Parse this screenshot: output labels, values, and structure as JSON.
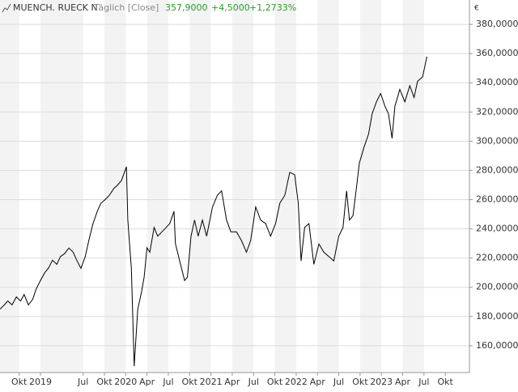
{
  "chart_data": {
    "type": "line",
    "title": "MUENCH. RUECK N",
    "subtitle": "Täglich [Close]",
    "last": "357,9000",
    "change": "+4,5000",
    "change_pct": "+1,2733%",
    "y_unit": "€",
    "color": "#000000",
    "grid": true,
    "x": [
      -5.7,
      -5.1,
      -4.6,
      -4.0,
      -3.4,
      -2.8,
      -2.3,
      -1.7,
      -1.1,
      -0.6,
      0,
      0.6,
      1.1,
      1.7,
      2.3,
      2.8,
      3.4,
      4.0,
      4.6,
      5.1,
      5.7,
      6.3,
      6.8,
      7.4,
      8.0,
      8.5,
      9.1,
      9.7,
      10.3,
      10.8,
      11.4,
      12.1,
      12.3,
      12.8,
      13.2,
      13.7,
      14.2,
      14.6,
      15.0,
      15.4,
      16.0,
      16.5,
      17.1,
      17.7,
      18.2,
      18.8,
      19.0,
      19.6,
      20.3,
      20.7,
      21.2,
      21.7,
      22.2,
      22.8,
      23.4,
      24.2,
      24.9,
      25.5,
      26.2,
      26.8,
      27.6,
      28.3,
      29.0,
      29.6,
      30.3,
      31.0,
      31.7,
      32.4,
      33.1,
      33.7,
      34.4,
      35.1,
      35.8,
      36.3,
      36.7,
      37.2,
      37.8,
      38.5,
      39.2,
      39.9,
      40.6,
      41.3,
      42.0,
      42.6,
      43.1,
      43.5,
      44.0,
      44.5,
      44.9,
      45.6,
      46.2,
      46.7,
      47.3,
      47.9,
      48.5,
      49.0,
      49.5,
      49.9,
      50.6,
      51.3,
      52.0,
      52.6,
      53.1,
      53.8,
      54.4
    ],
    "values": [
      185,
      187.9,
      190.6,
      187.9,
      193.4,
      190.6,
      195,
      187.9,
      191.8,
      199,
      204.6,
      210,
      213,
      218.5,
      215.7,
      221,
      223,
      226.9,
      224,
      218.5,
      213,
      221,
      232,
      243.6,
      252,
      257.5,
      260,
      263,
      267.5,
      269.7,
      273,
      282.5,
      246,
      213,
      146,
      185,
      196,
      207,
      227,
      224,
      241,
      235,
      238,
      241,
      243.6,
      252,
      230,
      218,
      204.6,
      207,
      235,
      246,
      235,
      246,
      235,
      254.7,
      263,
      266,
      246,
      238,
      238,
      232,
      224,
      232,
      255,
      246,
      243.6,
      235,
      243.6,
      257.5,
      263,
      278.7,
      277,
      257.5,
      218,
      241,
      243.6,
      215.7,
      229.6,
      224,
      221,
      218,
      235,
      241,
      266,
      246,
      249,
      268.6,
      285,
      296.5,
      305,
      318.8,
      327,
      332.7,
      324,
      318.8,
      302,
      324,
      335.5,
      327,
      338,
      330,
      341,
      344,
      357.9
    ],
    "xlim": [
      -5.7,
      60.4
    ],
    "xticks": [
      {
        "value": -3,
        "label": "Okt"
      },
      {
        "value": 0,
        "label": "2019"
      },
      {
        "value": 6,
        "label": "Jul"
      },
      {
        "value": 9,
        "label": "Okt"
      },
      {
        "value": 12,
        "label": "2020"
      },
      {
        "value": 15,
        "label": "Apr"
      },
      {
        "value": 18,
        "label": "Jul"
      },
      {
        "value": 21,
        "label": "Okt"
      },
      {
        "value": 24,
        "label": "2021"
      },
      {
        "value": 27,
        "label": "Apr"
      },
      {
        "value": 30,
        "label": "Jul"
      },
      {
        "value": 33,
        "label": "Okt"
      },
      {
        "value": 36,
        "label": "2022"
      },
      {
        "value": 39,
        "label": "Apr"
      },
      {
        "value": 42,
        "label": "Jul"
      },
      {
        "value": 45,
        "label": "Okt"
      },
      {
        "value": 48,
        "label": "2023"
      },
      {
        "value": 51,
        "label": "Apr"
      },
      {
        "value": 54,
        "label": "Jul"
      },
      {
        "value": 57,
        "label": "Okt"
      }
    ],
    "ylim": [
      141.6,
      396.7
    ],
    "yticks": [
      {
        "value": 160,
        "label": "160,0000"
      },
      {
        "value": 180,
        "label": "180,0000"
      },
      {
        "value": 200,
        "label": "200,0000"
      },
      {
        "value": 220,
        "label": "220,0000"
      },
      {
        "value": 240,
        "label": "240,0000"
      },
      {
        "value": 260,
        "label": "260,0000"
      },
      {
        "value": 280,
        "label": "280,0000"
      },
      {
        "value": 300,
        "label": "300,0000"
      },
      {
        "value": 320,
        "label": "320,0000"
      },
      {
        "value": 340,
        "label": "340,0000"
      },
      {
        "value": 360,
        "label": "360,0000"
      },
      {
        "value": 380,
        "label": "380,0000"
      }
    ]
  }
}
